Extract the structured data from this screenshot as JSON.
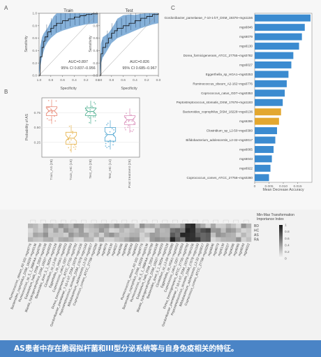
{
  "panelA": {
    "tag": "A",
    "train": {
      "title": "Train",
      "xlabel": "Specificity",
      "ylabel": "Sensitivity",
      "auc": "AUC=0.897",
      "ci": "95% CI 0.837–0.956",
      "xticks": [
        "1.0",
        "0.8",
        "0.6",
        "0.4",
        "0.2",
        "0.0"
      ],
      "yticks": [
        "0.0",
        "0.2",
        "0.4",
        "0.6",
        "0.8",
        "1.0"
      ]
    },
    "test": {
      "title": "Test",
      "xlabel": "Specificity",
      "ylabel": "Sensitivity",
      "auc": "AUC=0.826",
      "ci": "95% CI 0.685–0.967",
      "xticks": [
        "1.0",
        "0.8",
        "0.6",
        "0.4",
        "0.2",
        "0.0"
      ],
      "yticks": [
        "0.0",
        "0.2",
        "0.4",
        "0.6",
        "0.8",
        "1.0"
      ]
    }
  },
  "panelB": {
    "tag": "B",
    "ylabel": "Probability of AS",
    "yticks": [
      "0.25",
      "0.50",
      "0.75"
    ],
    "colors": [
      "#e8836f",
      "#e6b24a",
      "#4cae8f",
      "#4aa3cf",
      "#d98bb8"
    ]
  },
  "panelC": {
    "tag": "C",
    "xlabel": "Mean Decrease Accuracy",
    "xticks": [
      "0",
      "0.005",
      "0.010",
      "0.015"
    ],
    "colors": {
      "bar": "#3b8bd0",
      "highlight": "#e3a72f"
    }
  },
  "panelD": {
    "legend_title": "Min-Max Transformation\nImportance Index",
    "legend_ticks": [
      "1",
      "0.8",
      "0.6",
      "0.4",
      "0.2",
      "0"
    ],
    "rows": [
      "BD",
      "HC",
      "AS",
      "RA"
    ]
  },
  "caption": "AS患者中存在脆弱拟杆菌和III型分泌系统等与自身免疫相关的特征。",
  "chart_data": [
    {
      "type": "line",
      "title": "Train",
      "xlabel": "Specificity",
      "ylabel": "Sensitivity",
      "xlim": [
        1.0,
        0.0
      ],
      "ylim": [
        0.0,
        1.0
      ],
      "x": [
        1.0,
        0.98,
        0.95,
        0.92,
        0.9,
        0.85,
        0.8,
        0.75,
        0.7,
        0.6,
        0.5,
        0.4,
        0.3,
        0.2,
        0.1,
        0.0
      ],
      "y": [
        0.0,
        0.3,
        0.45,
        0.55,
        0.62,
        0.7,
        0.76,
        0.8,
        0.84,
        0.88,
        0.91,
        0.94,
        0.96,
        0.98,
        0.99,
        1.0
      ],
      "annotations": [
        "AUC=0.897",
        "95% CI 0.837–0.956"
      ]
    },
    {
      "type": "line",
      "title": "Test",
      "xlabel": "Specificity",
      "ylabel": "Sensitivity",
      "xlim": [
        1.0,
        0.0
      ],
      "ylim": [
        0.0,
        1.0
      ],
      "x": [
        1.0,
        0.98,
        0.95,
        0.9,
        0.85,
        0.8,
        0.75,
        0.7,
        0.6,
        0.5,
        0.4,
        0.3,
        0.2,
        0.1,
        0.0
      ],
      "y": [
        0.0,
        0.35,
        0.45,
        0.52,
        0.6,
        0.68,
        0.72,
        0.76,
        0.8,
        0.84,
        0.88,
        0.92,
        0.95,
        0.98,
        1.0
      ],
      "annotations": [
        "AUC=0.826",
        "95% CI 0.685–0.967"
      ]
    },
    {
      "type": "box",
      "ylabel": "Probability of AS",
      "categories": [
        "Train_AS (28)",
        "Train_HC (15)",
        "Test_AS (28)",
        "Test_HC (14)",
        "Post treatment (26)"
      ],
      "boxes": [
        {
          "q1": 0.7,
          "median": 0.78,
          "q3": 0.85
        },
        {
          "q1": 0.22,
          "median": 0.32,
          "q3": 0.42
        },
        {
          "q1": 0.7,
          "median": 0.77,
          "q3": 0.83
        },
        {
          "q1": 0.27,
          "median": 0.38,
          "q3": 0.5
        },
        {
          "q1": 0.55,
          "median": 0.63,
          "q3": 0.7
        }
      ]
    },
    {
      "type": "bar",
      "orientation": "horizontal",
      "xlabel": "Mean Decrease Accuracy",
      "xlim": [
        0,
        0.02
      ],
      "categories": [
        "Gordonibacter_pamelaeae_7-10-1-bT_DSM_19378~mgs1156",
        "mgs6846",
        "mgs6079",
        "mgs6130",
        "Dorea_formicigenerans_ATCC_27755~mgs0782",
        "mgs6027",
        "Eggerthella_sp_HGA1~mgs0253",
        "Ruminococcus_obeum_A2-162~mgs0776",
        "Coprococcus_catus_GD7~mgs0353",
        "Peptostreptococcus_stomatis_DSM_17678~mgs1183",
        "Bacteroides_coprophilus_DSM_18228~mgs0136",
        "mgs6286",
        "Clostridium_sp_L2-50~mgs0380",
        "Bifidobacterium_adolescentis_L2-32~mgs0017",
        "mgs6065",
        "mgs6043",
        "mgs6922",
        "Coprococcus_comes_ATCC_27758~mgs0280"
      ],
      "values": [
        0.0195,
        0.0175,
        0.0165,
        0.0155,
        0.0135,
        0.0128,
        0.0118,
        0.0112,
        0.0105,
        0.0098,
        0.0092,
        0.0085,
        0.0078,
        0.0072,
        0.0066,
        0.006,
        0.0055,
        0.005
      ],
      "highlighted": [
        "Bacteroides_coprophilus_DSM_18228~mgs0136",
        "mgs6286"
      ]
    },
    {
      "type": "heatmap",
      "rows": [
        "BD",
        "HC",
        "AS",
        "RA"
      ],
      "color_range": [
        0,
        1
      ],
      "legend_title": "Min-Max Transformation Importance Index",
      "columns": [
        "Ruminococcus_obeum_A2-162~mgs0776",
        "Bacteroides_coprophilus_DSM_18228~mgs0136",
        "Ruminococcus_sp_5_1_39BFAA~mgs0789",
        "Eubacterium_hallii_DSM_3353~mgs0198",
        "Blautia_hydrogenotrophica_DSM_10507~mgs0229",
        "Bacteroides_dorei_5_1_36/D4~mgs0128",
        "Clostridium_sp_L2-50~mgs0380",
        "Eggerthella_sp_HGA1~mgs0253",
        "Coprococcus_catus_GD7~mgs0353",
        "Dorea_formicigenerans_ATCC_27755~mgs0782",
        "Gordonibacter_pamelaeae_7-10-1-bT_DSM_19378~mgs1156",
        "Peptostreptococcus_stomatis_DSM_17678~mgs1183",
        "Bifidobacterium_adolescentis_L2-32~mgs0017",
        "Coprococcus_comes_ATCC_27758~mgs0280",
        "mgs6846",
        "mgs6079",
        "mgs6130",
        "mgs6027",
        "mgs6286",
        "mgs6065",
        "mgs6043",
        "mgs6922"
      ]
    }
  ]
}
